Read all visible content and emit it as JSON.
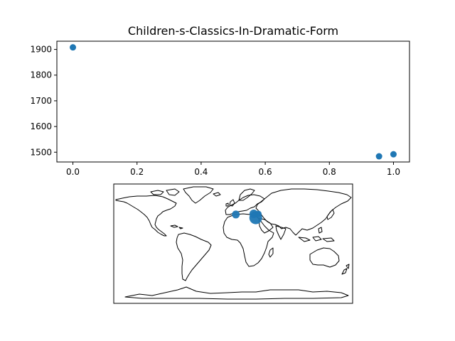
{
  "chart_data": [
    {
      "type": "scatter",
      "title": "Children-s-Classics-In-Dramatic-Form",
      "xlabel": "",
      "ylabel": "",
      "xlim": [
        -0.05,
        1.05
      ],
      "ylim": [
        1462,
        1932
      ],
      "xticks": [
        0.0,
        0.2,
        0.4,
        0.6,
        0.8,
        1.0
      ],
      "xtick_labels": [
        "0.0",
        "0.2",
        "0.4",
        "0.6",
        "0.8",
        "1.0"
      ],
      "yticks": [
        1500,
        1600,
        1700,
        1800,
        1900
      ],
      "ytick_labels": [
        "1500",
        "1600",
        "1700",
        "1800",
        "1900"
      ],
      "grid": false,
      "marker_color": "#1f77b4",
      "points": [
        {
          "x": 0.0,
          "y": 1908
        },
        {
          "x": 0.955,
          "y": 1484
        },
        {
          "x": 1.0,
          "y": 1492
        }
      ]
    },
    {
      "type": "scatter",
      "subtype": "world-map",
      "projection": "plate-carree",
      "xlim": [
        -180,
        180
      ],
      "ylim": [
        -90,
        90
      ],
      "marker_color": "#1f77b4",
      "points": [
        {
          "lon": 4,
          "lat": 44,
          "size": 7
        },
        {
          "lon": 31,
          "lat": 45,
          "size": 8
        },
        {
          "lon": 34,
          "lat": 39,
          "size": 14
        },
        {
          "lon": 38,
          "lat": 45,
          "size": 5
        }
      ]
    }
  ]
}
